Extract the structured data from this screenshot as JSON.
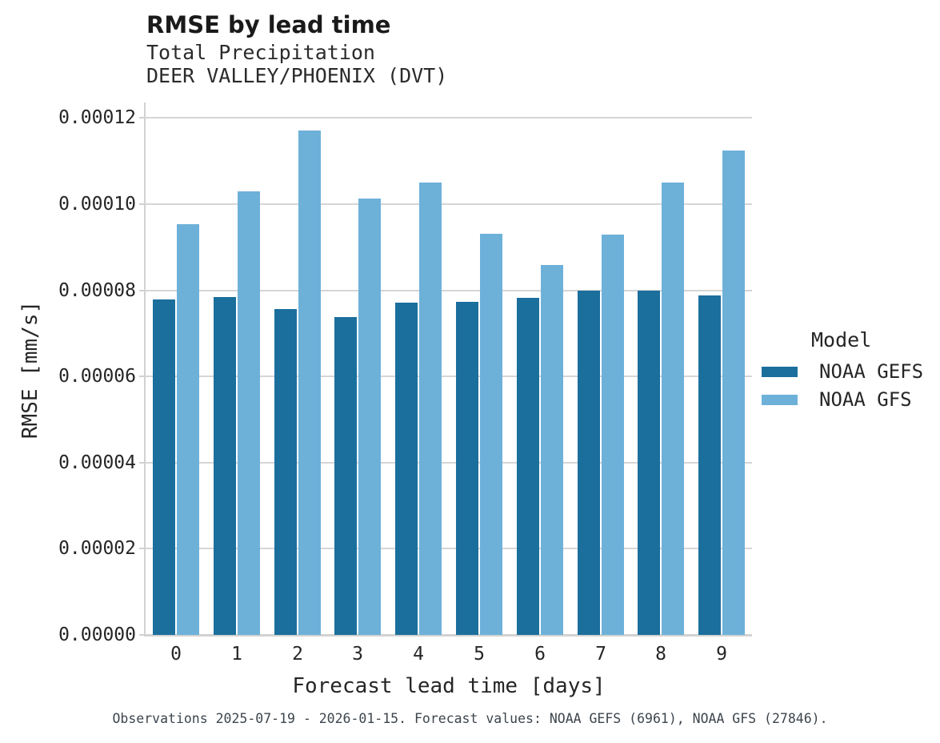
{
  "chart_data": {
    "type": "bar",
    "title": "RMSE by lead time",
    "subtitle": "Total Precipitation",
    "subtitle2": "DEER VALLEY/PHOENIX (DVT)",
    "xlabel": "Forecast lead time [days]",
    "ylabel": "RMSE [mm/s]",
    "categories": [
      "0",
      "1",
      "2",
      "3",
      "4",
      "5",
      "6",
      "7",
      "8",
      "9"
    ],
    "series": [
      {
        "name": "NOAA GEFS",
        "color": "#1b6f9d",
        "values": [
          7.79e-05,
          7.84e-05,
          7.56e-05,
          7.38e-05,
          7.71e-05,
          7.73e-05,
          7.82e-05,
          8e-05,
          8e-05,
          7.88e-05
        ]
      },
      {
        "name": "NOAA GFS",
        "color": "#6db1d9",
        "values": [
          9.53e-05,
          0.000103,
          0.0001171,
          0.0001013,
          0.000105,
          9.31e-05,
          8.59e-05,
          9.29e-05,
          0.000105,
          0.0001125
        ]
      }
    ],
    "ylim": [
      0,
      0.0001236
    ],
    "yticks": [
      0,
      2e-05,
      4e-05,
      6e-05,
      8e-05,
      0.0001,
      0.00012
    ],
    "ytick_labels": [
      "0.00000",
      "0.00002",
      "0.00004",
      "0.00006",
      "0.00008",
      "0.00010",
      "0.00012"
    ],
    "grid": "horizontal",
    "legend": {
      "title": "Model",
      "position": "right"
    },
    "caption": "Observations 2025-07-19 - 2026-01-15. Forecast values: NOAA GEFS (6961), NOAA GFS (27846)."
  },
  "colors": {
    "background": "#ffffff",
    "gridline": "#d6d6d6",
    "spine": "#d2d2d2",
    "title_text": "#1a1a1a",
    "body_text": "#262626",
    "caption_text": "#3d454d"
  }
}
